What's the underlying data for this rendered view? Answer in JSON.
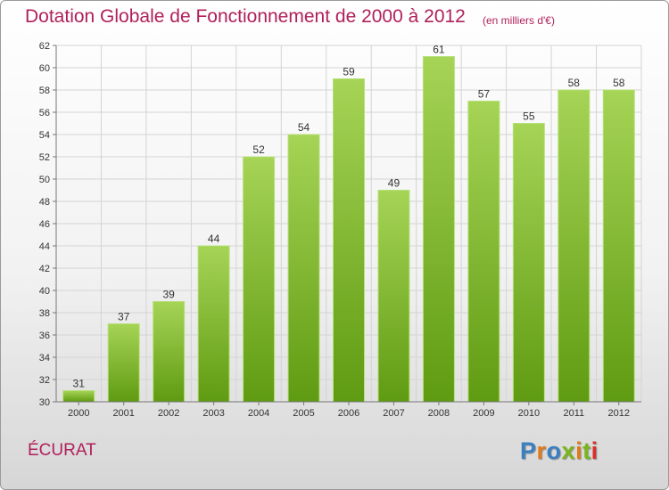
{
  "header": {
    "title": "Dotation Globale de Fonctionnement de 2000 à 2012",
    "unit": "(en milliers d'€)"
  },
  "footer": {
    "commune": "ÉCURAT",
    "logo_text": "Proxiti"
  },
  "colors": {
    "title": "#b0205a",
    "bar_light": "#a6d456",
    "bar_dark": "#5f9b12",
    "logo": [
      "#3a7fc1",
      "#e07b1a",
      "#3a7fc1",
      "#7ab51d",
      "#e07b1a",
      "#7ab51d",
      "#d9302c"
    ]
  },
  "chart_data": {
    "type": "bar",
    "categories": [
      "2000",
      "2001",
      "2002",
      "2003",
      "2004",
      "2005",
      "2006",
      "2007",
      "2008",
      "2009",
      "2010",
      "2011",
      "2012"
    ],
    "values": [
      31,
      37,
      39,
      44,
      52,
      54,
      59,
      49,
      61,
      57,
      55,
      58,
      58
    ],
    "ylim": [
      30,
      62
    ],
    "yticks": [
      30,
      32,
      34,
      36,
      38,
      40,
      42,
      44,
      46,
      48,
      50,
      52,
      54,
      56,
      58,
      60,
      62
    ],
    "grid": true
  }
}
